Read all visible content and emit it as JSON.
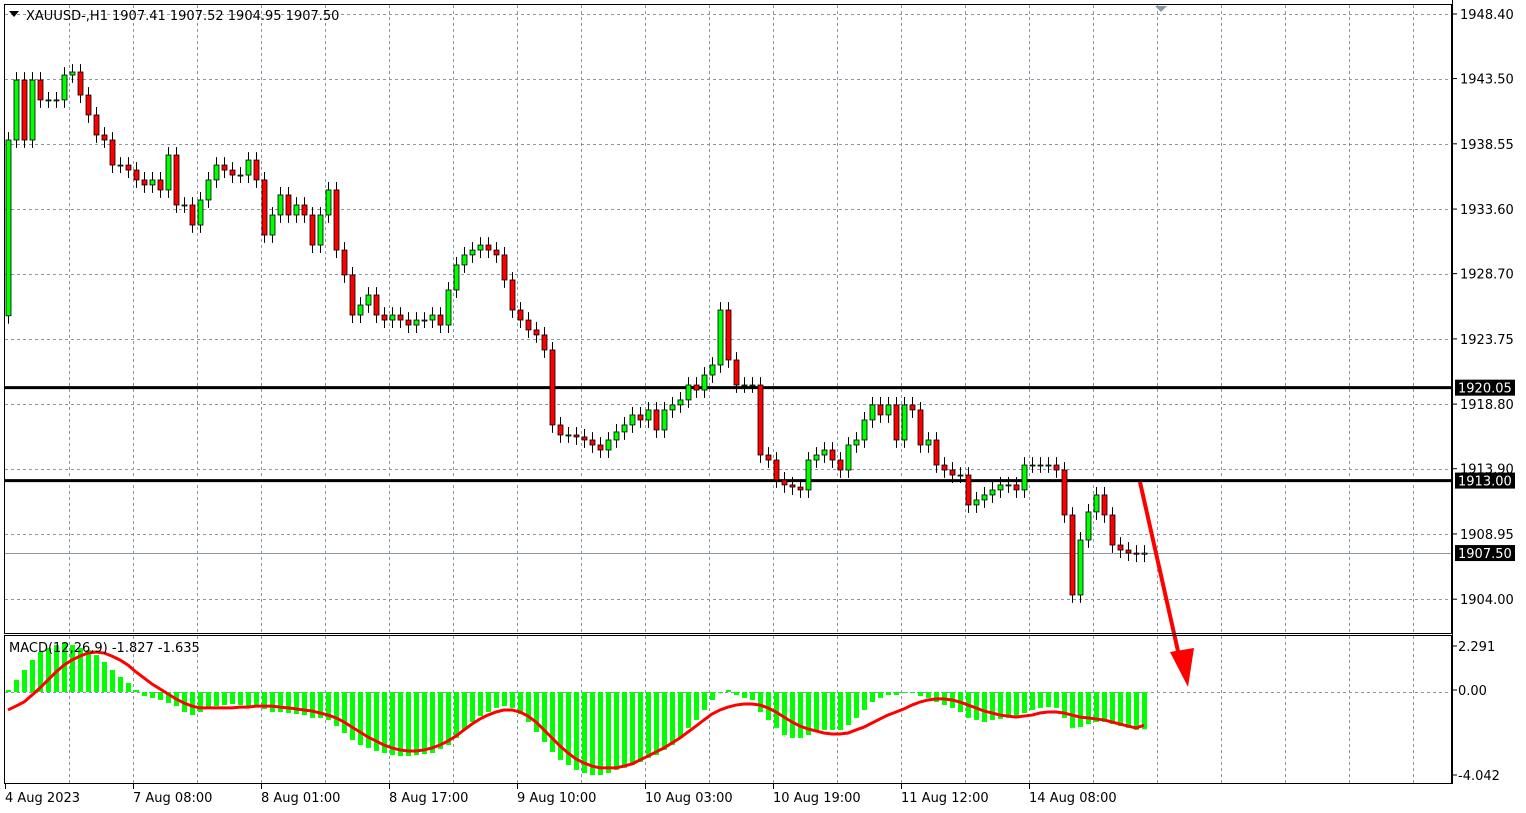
{
  "header": {
    "symbol": "XAUUSD-,H1",
    "ohlc_text": "1907.41 1907.52 1904.95 1907.50"
  },
  "colors": {
    "bull": "#00ff00",
    "bear": "#ff0000",
    "macd_hist": "#00ff00",
    "signal": "#ff0000",
    "levels": "#000000",
    "arrow": "#ff0000"
  },
  "chart_data": [
    {
      "type": "candlestick",
      "symbol": "XAUUSD-",
      "timeframe": "H1",
      "y_ticks": [
        "1948.40",
        "1943.50",
        "1938.55",
        "1933.60",
        "1928.70",
        "1923.75",
        "1918.80",
        "1913.90",
        "1908.95",
        "1904.00"
      ],
      "x_ticks": [
        "4 Aug 2023",
        "7 Aug 08:00",
        "8 Aug 01:00",
        "8 Aug 17:00",
        "9 Aug 10:00",
        "10 Aug 03:00",
        "10 Aug 19:00",
        "11 Aug 12:00",
        "14 Aug 08:00"
      ],
      "ylim": [
        1901.4,
        1949.1
      ],
      "grid": true,
      "first_open": 1925.5,
      "close": [
        1938.84,
        1943.39,
        1938.84,
        1943.39,
        1941.88,
        1941.88,
        1941.88,
        1943.77,
        1944.0,
        1942.25,
        1940.74,
        1939.22,
        1938.84,
        1936.94,
        1936.94,
        1936.56,
        1935.81,
        1935.43,
        1935.81,
        1935.05,
        1937.7,
        1933.91,
        1933.91,
        1932.39,
        1934.29,
        1935.81,
        1936.94,
        1936.56,
        1936.18,
        1936.18,
        1937.32,
        1935.81,
        1931.63,
        1933.15,
        1934.67,
        1933.15,
        1933.91,
        1933.15,
        1930.87,
        1933.15,
        1935.05,
        1930.49,
        1928.6,
        1925.56,
        1926.32,
        1927.08,
        1925.56,
        1925.18,
        1925.56,
        1925.18,
        1924.8,
        1925.18,
        1925.18,
        1925.56,
        1924.8,
        1927.46,
        1929.36,
        1930.12,
        1930.49,
        1930.87,
        1930.49,
        1930.12,
        1928.22,
        1925.94,
        1925.18,
        1924.43,
        1924.05,
        1922.91,
        1917.22,
        1916.46,
        1916.46,
        1916.31,
        1916.08,
        1915.7,
        1915.32,
        1916.08,
        1916.69,
        1917.22,
        1917.98,
        1917.6,
        1918.36,
        1916.84,
        1918.36,
        1918.74,
        1919.12,
        1920.25,
        1919.87,
        1921.01,
        1921.77,
        1925.94,
        1922.15,
        1920.25,
        1920.25,
        1920.25,
        1914.94,
        1914.56,
        1913.05,
        1912.67,
        1912.51,
        1912.29,
        1914.56,
        1914.94,
        1915.32,
        1914.56,
        1913.8,
        1915.7,
        1916.08,
        1917.6,
        1918.74,
        1917.98,
        1918.74,
        1916.08,
        1918.74,
        1918.36,
        1915.7,
        1916.08,
        1914.18,
        1913.8,
        1913.42,
        1913.42,
        1911.15,
        1911.53,
        1911.91,
        1912.29,
        1912.67,
        1912.67,
        1912.29,
        1914.18,
        1914.18,
        1914.18,
        1914.18,
        1913.8,
        1910.39,
        1904.32,
        1908.49,
        1910.62,
        1911.91,
        1910.39,
        1908.11,
        1907.73,
        1907.5,
        1907.41,
        1907.5
      ],
      "horizontal_levels": [
        {
          "price": 1920.05,
          "label": "1920.05"
        },
        {
          "price": 1913.0,
          "label": "1913.00"
        }
      ],
      "current_price": {
        "price": 1907.5,
        "label": "1907.50"
      },
      "annotation": "red arrow pointing down from the 1913.00 level"
    },
    {
      "type": "bar+line",
      "indicator_label": "MACD(12,26,9) -1.827 -1.635",
      "y_ticks": [
        "2.291",
        "0.00",
        "-4.042"
      ],
      "ylim": [
        -4.4,
        2.8
      ],
      "macd": [
        0.1,
        0.59,
        1.08,
        1.57,
        1.96,
        2.16,
        2.3,
        2.4,
        2.3,
        2.16,
        2.06,
        1.81,
        1.47,
        1.08,
        0.74,
        0.44,
        0.1,
        -0.2,
        -0.29,
        -0.39,
        -0.54,
        -0.69,
        -0.98,
        -1.13,
        -0.98,
        -0.78,
        -0.69,
        -0.64,
        -0.59,
        -0.64,
        -0.69,
        -0.74,
        -0.83,
        -0.98,
        -0.98,
        -1.03,
        -1.08,
        -1.13,
        -1.27,
        -1.27,
        -1.37,
        -1.67,
        -2.01,
        -2.35,
        -2.6,
        -2.74,
        -2.89,
        -2.99,
        -3.09,
        -3.14,
        -3.14,
        -3.09,
        -3.04,
        -2.99,
        -2.79,
        -2.6,
        -2.25,
        -1.86,
        -1.47,
        -1.18,
        -0.98,
        -0.78,
        -0.69,
        -0.78,
        -1.08,
        -1.47,
        -1.96,
        -2.45,
        -2.94,
        -3.33,
        -3.58,
        -3.82,
        -3.97,
        -4.07,
        -4.07,
        -3.97,
        -3.82,
        -3.72,
        -3.58,
        -3.43,
        -3.23,
        -3.09,
        -2.84,
        -2.6,
        -2.25,
        -1.76,
        -1.37,
        -0.88,
        -0.39,
        0.0,
        0.1,
        -0.15,
        -0.29,
        -0.39,
        -0.98,
        -1.37,
        -1.76,
        -2.11,
        -2.25,
        -2.25,
        -2.11,
        -1.96,
        -1.86,
        -1.86,
        -1.86,
        -1.62,
        -1.27,
        -0.88,
        -0.49,
        -0.29,
        -0.15,
        -0.15,
        0.0,
        0.0,
        -0.2,
        -0.29,
        -0.49,
        -0.64,
        -0.78,
        -0.98,
        -1.27,
        -1.37,
        -1.47,
        -1.37,
        -1.32,
        -1.27,
        -1.27,
        -1.03,
        -0.88,
        -0.78,
        -0.74,
        -0.78,
        -1.27,
        -1.76,
        -1.72,
        -1.57,
        -1.47,
        -1.47,
        -1.57,
        -1.67,
        -1.76,
        -1.86,
        -1.827
      ],
      "signal": [
        -0.88,
        -0.69,
        -0.49,
        -0.15,
        0.2,
        0.59,
        0.98,
        1.32,
        1.57,
        1.76,
        1.91,
        1.96,
        1.91,
        1.76,
        1.57,
        1.32,
        0.98,
        0.69,
        0.39,
        0.15,
        -0.1,
        -0.34,
        -0.54,
        -0.69,
        -0.78,
        -0.78,
        -0.78,
        -0.78,
        -0.78,
        -0.74,
        -0.74,
        -0.69,
        -0.69,
        -0.69,
        -0.74,
        -0.78,
        -0.83,
        -0.88,
        -0.93,
        -1.03,
        -1.13,
        -1.27,
        -1.47,
        -1.72,
        -1.96,
        -2.21,
        -2.4,
        -2.6,
        -2.74,
        -2.84,
        -2.89,
        -2.89,
        -2.84,
        -2.74,
        -2.6,
        -2.4,
        -2.16,
        -1.86,
        -1.57,
        -1.32,
        -1.13,
        -0.98,
        -0.88,
        -0.88,
        -0.98,
        -1.18,
        -1.47,
        -1.86,
        -2.25,
        -2.65,
        -2.99,
        -3.28,
        -3.48,
        -3.63,
        -3.72,
        -3.72,
        -3.72,
        -3.63,
        -3.53,
        -3.33,
        -3.14,
        -2.94,
        -2.74,
        -2.5,
        -2.25,
        -1.96,
        -1.67,
        -1.37,
        -1.08,
        -0.88,
        -0.74,
        -0.64,
        -0.59,
        -0.59,
        -0.64,
        -0.78,
        -0.98,
        -1.23,
        -1.47,
        -1.67,
        -1.81,
        -1.91,
        -2.01,
        -2.06,
        -2.06,
        -2.01,
        -1.86,
        -1.72,
        -1.52,
        -1.32,
        -1.13,
        -0.98,
        -0.83,
        -0.64,
        -0.49,
        -0.39,
        -0.34,
        -0.34,
        -0.39,
        -0.49,
        -0.64,
        -0.78,
        -0.93,
        -1.03,
        -1.13,
        -1.18,
        -1.23,
        -1.18,
        -1.13,
        -1.03,
        -0.98,
        -0.98,
        -1.03,
        -1.13,
        -1.23,
        -1.27,
        -1.32,
        -1.37,
        -1.47,
        -1.57,
        -1.67,
        -1.76,
        -1.635
      ]
    }
  ]
}
